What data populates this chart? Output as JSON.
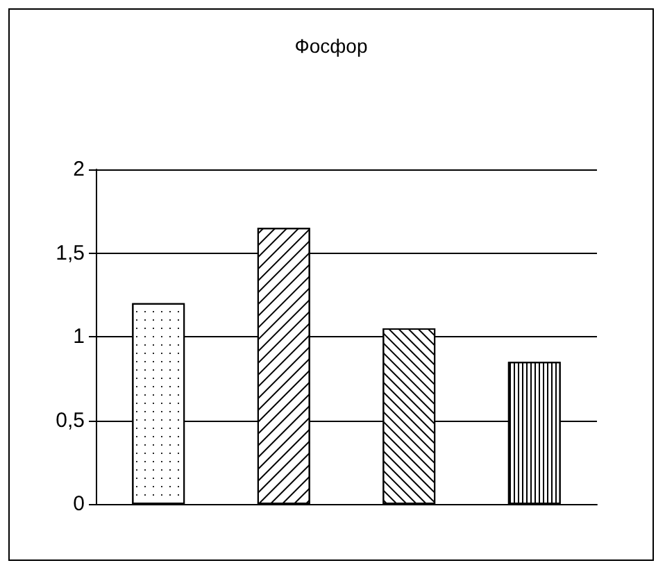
{
  "chart_data": {
    "type": "bar",
    "title": "Фосфор",
    "categories": [
      null,
      null,
      null,
      null
    ],
    "values": [
      1.2,
      1.65,
      1.05,
      0.85
    ],
    "colors": [
      "#ffffff",
      "#ffffff",
      "#ffffff",
      "#ffffff"
    ],
    "ylim": [
      0,
      2
    ],
    "yticks": [
      {
        "value": 0,
        "label": "0"
      },
      {
        "value": 0.5,
        "label": "0,5"
      },
      {
        "value": 1,
        "label": "1"
      },
      {
        "value": 1.5,
        "label": "1,5"
      },
      {
        "value": 2,
        "label": "2"
      }
    ],
    "grid": "y"
  }
}
